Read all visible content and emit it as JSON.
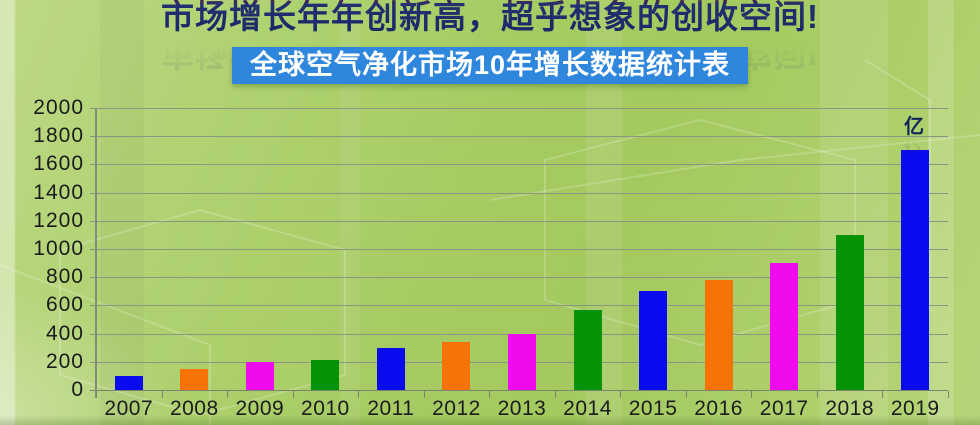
{
  "header": {
    "title": "市场增长年年创新高，超乎想象的创收空间!",
    "title_color": "#1d2a68",
    "banner": {
      "label": "全球空气净化市场10年增长数据统计表",
      "background": "#2e86dd",
      "text_color": "#ffffff"
    }
  },
  "chart_data": {
    "type": "bar",
    "title": "全球空气净化市场10年增长数据统计表",
    "unit_label": "亿",
    "categories": [
      "2007",
      "2008",
      "2009",
      "2010",
      "2011",
      "2012",
      "2013",
      "2014",
      "2015",
      "2016",
      "2017",
      "2018",
      "2019"
    ],
    "values": [
      100,
      150,
      200,
      210,
      300,
      340,
      400,
      570,
      700,
      780,
      900,
      1100,
      1700
    ],
    "bar_colors": [
      "#0b0bf0",
      "#f87307",
      "#ee0cee",
      "#079307",
      "#0b0bf0",
      "#f87307",
      "#ee0cee",
      "#079307",
      "#0b0bf0",
      "#f87307",
      "#ee0cee",
      "#079307",
      "#0b0bf0"
    ],
    "xlabel": "",
    "ylabel": "",
    "ylim": [
      0,
      2000
    ],
    "ytick_step": 200,
    "ytick_labels": [
      "2000",
      "1800",
      "1600",
      "1400",
      "1200",
      "1000",
      "800",
      "600",
      "400",
      "200",
      "0"
    ],
    "grid": true,
    "gridline_color": "#8b9583",
    "axis_label_color": "#1c1c1c",
    "legend": "none"
  }
}
